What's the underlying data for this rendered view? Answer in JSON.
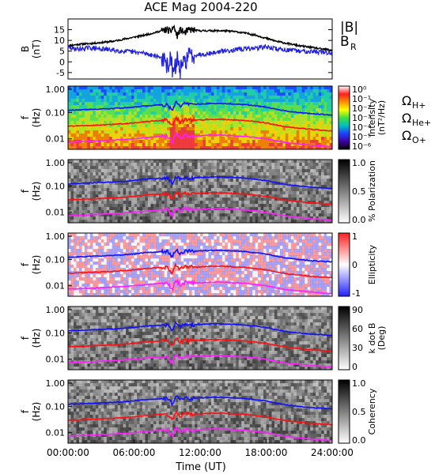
{
  "chart_data": {
    "type": "line",
    "title": "ACE Mag 2004-220",
    "xlabel": "Time (UT)",
    "x_ticks": [
      "00:00:00",
      "06:00:00",
      "12:00:00",
      "18:00:00",
      "24:00:00"
    ],
    "x_range_hours": [
      0,
      24
    ],
    "panels": [
      {
        "id": "b-field",
        "ylabel": "B",
        "yunit": "(nT)",
        "ylim": [
          -8,
          20
        ],
        "yticks": [
          "15",
          "10",
          "5",
          "0",
          "-5"
        ],
        "ytick_values": [
          15,
          10,
          5,
          0,
          -5
        ],
        "legend": [
          "|B|",
          "B",
          "R"
        ],
        "legend_colors": [
          "#000000",
          "#2020e0"
        ],
        "series": [
          {
            "name": "|B|",
            "color": "#000000",
            "x": [
              0,
              1,
              2,
              3,
              4,
              5,
              6,
              7,
              7.8,
              8.5,
              9.0,
              9.3,
              9.6,
              9.9,
              10.2,
              10.6,
              11,
              12,
              13,
              14,
              15,
              16,
              17,
              18,
              19,
              20,
              21,
              22,
              23,
              24
            ],
            "y": [
              7.5,
              8.2,
              8.5,
              9,
              9.5,
              10.5,
              11.5,
              12.5,
              13.5,
              14.5,
              15,
              14,
              16.5,
              12,
              15,
              13.5,
              15,
              14.5,
              14.5,
              14.5,
              14.2,
              13.5,
              12.5,
              11,
              9.5,
              8.5,
              7.5,
              6.8,
              6,
              5.5
            ]
          },
          {
            "name": "B",
            "color": "#2020e0",
            "x": [
              0,
              1,
              2,
              3,
              4,
              5,
              6,
              7,
              7.8,
              8.5,
              9.0,
              9.3,
              9.6,
              9.9,
              10.2,
              10.6,
              11,
              12,
              13,
              14,
              15,
              16,
              17,
              18,
              19,
              20,
              21,
              22,
              23,
              24
            ],
            "y": [
              6.5,
              6,
              6.5,
              6,
              5.5,
              5,
              4.5,
              4,
              3,
              2,
              -2,
              1,
              -6,
              2,
              -4,
              0,
              3,
              3.5,
              4,
              5,
              5.5,
              6,
              6.5,
              7,
              6,
              5.5,
              5,
              5,
              4.5,
              4
            ]
          }
        ]
      },
      {
        "id": "intensity",
        "ylabel": "f",
        "yunit": "(Hz)",
        "yticks": [
          "1.00",
          "0.10",
          "0.01"
        ],
        "colorbar": {
          "label": "Intensity",
          "unit": "(nT²/Hz)",
          "ticks": [
            "10⁰",
            "10⁻¹",
            "10⁻²",
            "10⁻³",
            "10⁻⁴",
            "10⁻⁵",
            "10⁻⁶"
          ],
          "colors": [
            "#ffffff",
            "#ff2020",
            "#ff9000",
            "#ffff00",
            "#40e040",
            "#00c0c0",
            "#2040ff",
            "#4000a0",
            "#000000"
          ]
        },
        "gyro_labels": [
          {
            "text": "Ω",
            "sub": "H+",
            "color": "#1010ff"
          },
          {
            "text": "Ω",
            "sub": "He+",
            "color": "#ff1010"
          },
          {
            "text": "Ω",
            "sub": "O+",
            "color": "#ff20ff"
          }
        ]
      },
      {
        "id": "polarization",
        "ylabel": "f",
        "yunit": "(Hz)",
        "yticks": [
          "1.00",
          "0.10",
          "0.01"
        ],
        "colorbar": {
          "label": "% Polarization",
          "ticks": [
            "1.0",
            "0.5",
            "0.0"
          ],
          "colors": [
            "#000000",
            "#ffffff"
          ]
        }
      },
      {
        "id": "ellipticity",
        "ylabel": "f",
        "yunit": "(Hz)",
        "yticks": [
          "1.00",
          "0.10",
          "0.01"
        ],
        "colorbar": {
          "label": "Ellipticity",
          "ticks": [
            "1",
            "0",
            "-1"
          ],
          "colors": [
            "#ff2020",
            "#ffffff",
            "#2020ff"
          ]
        }
      },
      {
        "id": "k-dot-b",
        "ylabel": "f",
        "yunit": "(Hz)",
        "yticks": [
          "1.00",
          "0.10",
          "0.01"
        ],
        "colorbar": {
          "label": "k dot B",
          "unit": "(Deg)",
          "ticks": [
            "90",
            "60",
            "30",
            "0"
          ],
          "colors": [
            "#000000",
            "#ffffff"
          ]
        }
      },
      {
        "id": "coherency",
        "ylabel": "f",
        "yunit": "(Hz)",
        "yticks": [
          "1.00",
          "0.10",
          "0.01"
        ],
        "colorbar": {
          "label": "Coherency",
          "ticks": [
            "1.0",
            "0.5",
            "0.0"
          ],
          "colors": [
            "#000000",
            "#ffffff"
          ]
        }
      }
    ],
    "gyro_lines": [
      {
        "name": "ΩH+",
        "color": "#1010ff",
        "x": [
          0,
          2,
          4,
          6,
          7,
          8,
          9,
          9.5,
          9.8,
          10.2,
          10.6,
          11,
          12,
          13,
          14,
          15,
          16,
          17,
          18,
          19,
          20,
          22,
          24
        ],
        "y": [
          0.12,
          0.13,
          0.14,
          0.16,
          0.18,
          0.19,
          0.2,
          0.12,
          0.25,
          0.17,
          0.21,
          0.2,
          0.21,
          0.22,
          0.22,
          0.21,
          0.2,
          0.18,
          0.16,
          0.13,
          0.11,
          0.09,
          0.08
        ]
      },
      {
        "name": "ΩHe+",
        "color": "#ff1010",
        "x": [
          0,
          2,
          4,
          6,
          7,
          8,
          9,
          9.5,
          9.8,
          10.2,
          10.6,
          11,
          12,
          13,
          14,
          15,
          16,
          17,
          18,
          19,
          20,
          22,
          24
        ],
        "y": [
          0.03,
          0.032,
          0.035,
          0.04,
          0.045,
          0.048,
          0.05,
          0.03,
          0.062,
          0.043,
          0.053,
          0.05,
          0.052,
          0.055,
          0.055,
          0.052,
          0.05,
          0.045,
          0.04,
          0.033,
          0.028,
          0.023,
          0.02
        ]
      },
      {
        "name": "ΩO+",
        "color": "#ff20ff",
        "x": [
          0,
          2,
          4,
          6,
          7,
          8,
          9,
          9.5,
          9.8,
          10.2,
          10.6,
          11,
          12,
          13,
          14,
          15,
          16,
          17,
          18,
          19,
          20,
          22,
          24
        ],
        "y": [
          0.0075,
          0.008,
          0.0088,
          0.01,
          0.011,
          0.012,
          0.0125,
          0.0075,
          0.0155,
          0.0108,
          0.0132,
          0.0125,
          0.013,
          0.0138,
          0.0138,
          0.013,
          0.0125,
          0.0112,
          0.01,
          0.0083,
          0.007,
          0.0058,
          0.005
        ]
      }
    ]
  }
}
